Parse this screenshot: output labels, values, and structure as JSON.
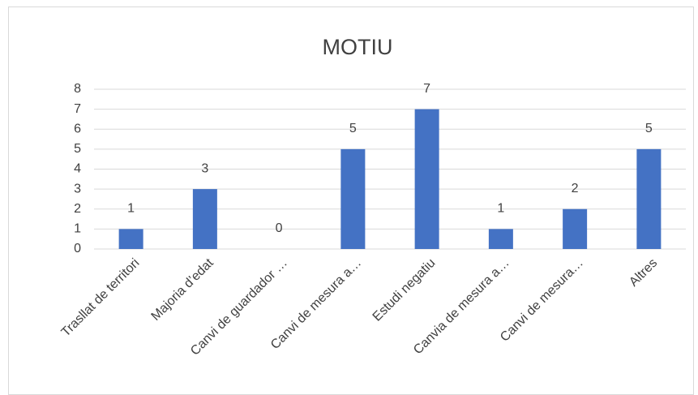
{
  "chart_data": {
    "type": "bar",
    "title": "MOTIU",
    "categories": [
      "Trasllat de territori",
      "Majoria d’edat",
      "Canvi de guardador …",
      "Canvi de mesura a…",
      "Estudi negatiu",
      "Canvia de mesura a…",
      "Canvi de mesura…",
      "Altres"
    ],
    "values": [
      1,
      3,
      0,
      5,
      7,
      1,
      2,
      5
    ],
    "color": "#4472c4",
    "ylim": [
      0,
      8
    ],
    "yticks": [
      0,
      1,
      2,
      3,
      4,
      5,
      6,
      7,
      8
    ],
    "grid": true
  }
}
